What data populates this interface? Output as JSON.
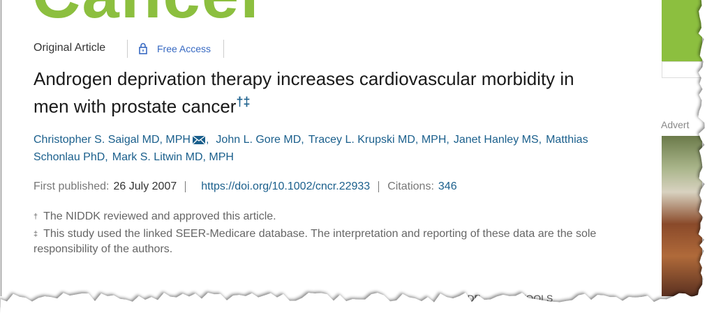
{
  "journal_logo": "Cancer",
  "article_type": "Original Article",
  "access": "Free Access",
  "title": "Androgen deprivation therapy increases cardiovascular morbidity in men with prostate cancer",
  "title_marks": "†‡",
  "authors": [
    "Christopher S. Saigal MD, MPH",
    ",",
    "John L. Gore MD,",
    "Tracey L. Krupski MD, MPH,",
    "Janet Hanley MS,",
    "Matthias Schonlau PhD,",
    "Mark S. Litwin MD, MPH"
  ],
  "meta": {
    "published_label": "First published:",
    "published_date": "26 July 2007",
    "doi": "https://doi.org/10.1002/cncr.22933",
    "citations_label": "Citations:",
    "citations": "346"
  },
  "footnotes": [
    {
      "mark": "†",
      "text": "The NIDDK reviewed and approved this article."
    },
    {
      "mark": "‡",
      "text": "This study used the linked SEER-Medicare database. The interpretation and reporting of these data are the sole responsibility of the authors."
    }
  ],
  "sidebar": {
    "ad_label": "Advert"
  },
  "toolbar": [
    "PDF",
    "TOOLS"
  ]
}
